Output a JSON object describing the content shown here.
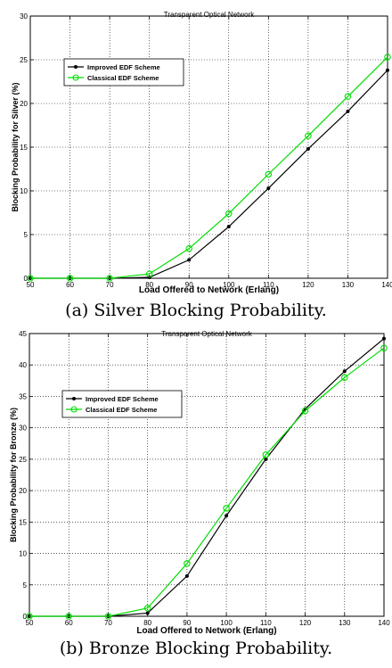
{
  "chart_data": [
    {
      "type": "line",
      "title": "Transparent Optical Network",
      "xlabel": "Load Offered to Network (Erlang)",
      "ylabel": "Blocking Probability for Silver (%)",
      "x": [
        50,
        60,
        70,
        80,
        90,
        100,
        110,
        120,
        130,
        140
      ],
      "xlim": [
        50,
        140
      ],
      "ylim": [
        0,
        30
      ],
      "xticks": [
        "50",
        "60",
        "70",
        "80",
        "90",
        "100",
        "110",
        "120",
        "130",
        "140"
      ],
      "yticks": [
        "0",
        "5",
        "10",
        "15",
        "20",
        "25",
        "30"
      ],
      "grid": true,
      "legend_position": "top-left",
      "series": [
        {
          "name": "Improved EDF Scheme",
          "color": "#000000",
          "marker": "dot",
          "values": [
            0,
            0,
            0,
            0.1,
            2.1,
            5.9,
            10.3,
            14.8,
            19.1,
            23.8
          ]
        },
        {
          "name": "Classical EDF Scheme",
          "color": "#00dd00",
          "marker": "circle",
          "values": [
            0,
            0,
            0,
            0.5,
            3.4,
            7.4,
            11.9,
            16.3,
            20.8,
            25.3
          ]
        }
      ],
      "caption": "(a) Silver Blocking Probability."
    },
    {
      "type": "line",
      "title": "Transparent Optical Network",
      "xlabel": "Load Offered to Network (Erlang)",
      "ylabel": "Blocking Probability for Bronze (%)",
      "x": [
        50,
        60,
        70,
        80,
        90,
        100,
        110,
        120,
        130,
        140
      ],
      "xlim": [
        50,
        140
      ],
      "ylim": [
        0,
        45
      ],
      "xticks": [
        "50",
        "60",
        "70",
        "80",
        "90",
        "100",
        "110",
        "120",
        "130",
        "140"
      ],
      "yticks": [
        "0",
        "5",
        "10",
        "15",
        "20",
        "25",
        "30",
        "35",
        "40",
        "45"
      ],
      "grid": true,
      "legend_position": "top-left",
      "series": [
        {
          "name": "Improved EDF Scheme",
          "color": "#000000",
          "marker": "dot",
          "values": [
            0,
            0,
            0,
            0.5,
            6.4,
            16.0,
            25.0,
            33.0,
            39.0,
            44.2
          ]
        },
        {
          "name": "Classical EDF Scheme",
          "color": "#00dd00",
          "marker": "circle",
          "values": [
            0,
            0,
            0,
            1.3,
            8.4,
            17.2,
            25.7,
            32.7,
            38.0,
            42.7
          ]
        }
      ],
      "caption": "(b) Bronze Blocking Probability."
    }
  ]
}
